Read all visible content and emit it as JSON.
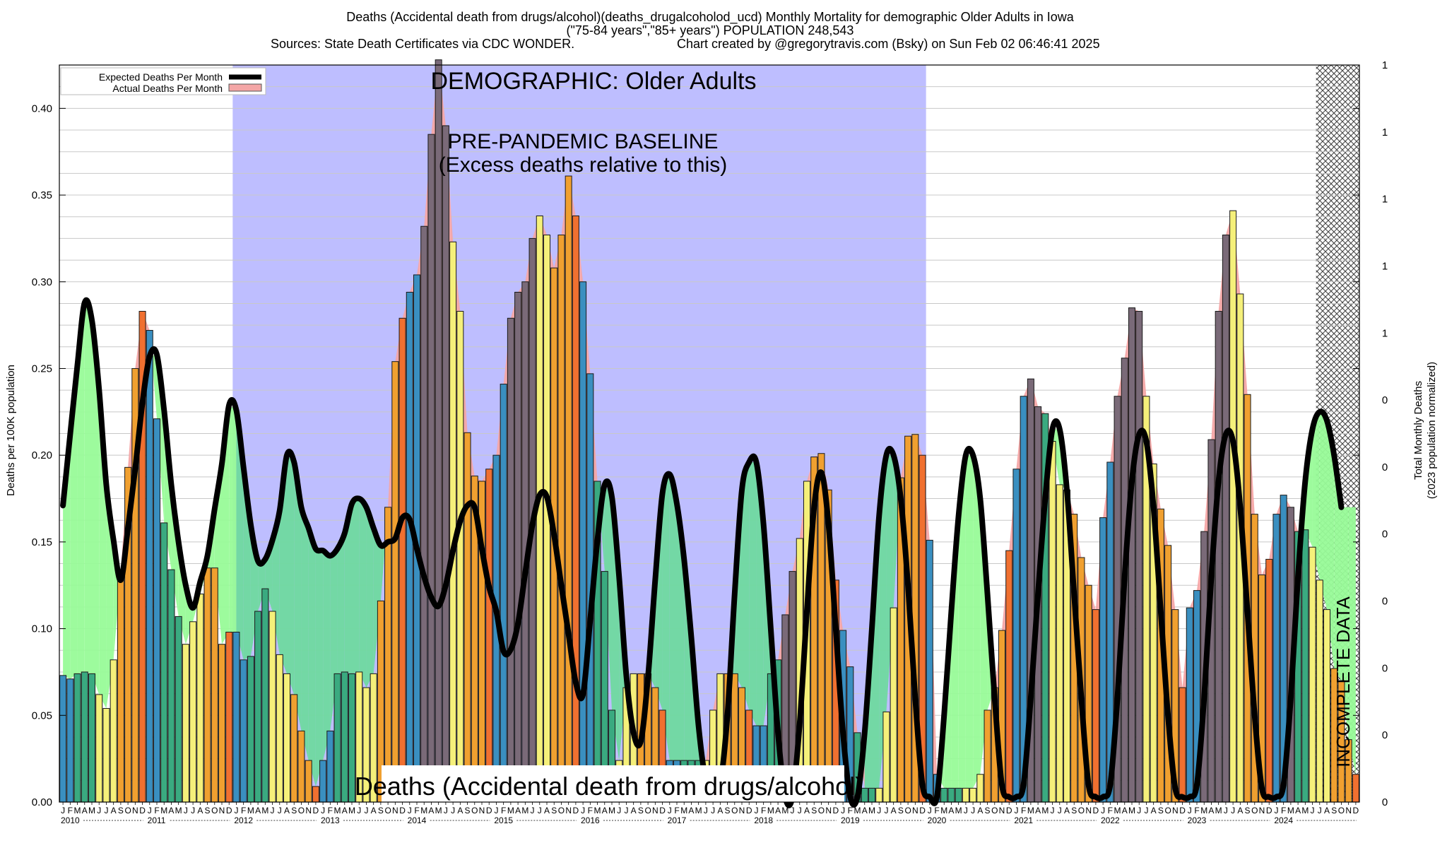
{
  "header": {
    "line1": "Deaths (Accidental death from drugs/alcohol)(deaths_drugalcoholod_ucd) Monthly Mortality for demographic Older Adults in Iowa",
    "line2": "(\"75-84 years\",\"85+ years\") POPULATION 248,543",
    "line3a": "Sources: State Death Certificates via CDC WONDER.",
    "line3b": "Chart created by @gregorytravis.com (Bsky) on Sun Feb 02 06:46:41 2025"
  },
  "annotations": {
    "demographic": "DEMOGRAPHIC: Older Adults",
    "baseline_line1": "PRE-PANDEMIC BASELINE",
    "baseline_line2": "(Excess deaths relative to this)",
    "bottom_label": "Deaths (Accidental death from drugs/alcohol)",
    "incomplete": "INCOMPLETE DATA"
  },
  "legend": {
    "expected": "Expected Deaths Per Month",
    "actual": "Actual Deaths Per Month"
  },
  "colors": {
    "baseline_region": "#bebeff",
    "excess_fill": "#98fb98",
    "deficit_fill": "#6fd9a0",
    "actual_fill": "#f4a6a6",
    "expected_line": "#000000",
    "bar_winter": "#3a8fc0",
    "bar_spring": "#3aaa80",
    "bar_summer": "#f5f07a",
    "bar_fall": "#f0a030",
    "bar_dec": "#f07030",
    "bar_peak": "#7a6a78"
  },
  "chart_data": {
    "type": "bar",
    "title": "Deaths (Accidental death from drugs/alcohol)(deaths_drugalcoholod_ucd) Monthly Mortality for demographic Older Adults in Iowa",
    "ylabel": "Deaths per 100K population",
    "y2label_line1": "Total Monthly Deaths",
    "y2label_line2": "(2023 population normalized)",
    "ylim": [
      0,
      0.425
    ],
    "yticks": [
      "0.00",
      "0.05",
      "0.10",
      "0.15",
      "0.20",
      "0.25",
      "0.30",
      "0.35",
      "0.40"
    ],
    "y2ticks": [
      "0",
      "0",
      "0",
      "0",
      "0",
      "0",
      "0",
      "1",
      "1",
      "1",
      "1",
      "1"
    ],
    "years": [
      "2010",
      "2011",
      "2012",
      "2013",
      "2014",
      "2015",
      "2016",
      "2017",
      "2018",
      "2019",
      "2020",
      "2021",
      "2022",
      "2023",
      "2024"
    ],
    "month_letters": [
      "J",
      "F",
      "M",
      "A",
      "M",
      "J",
      "J",
      "A",
      "S",
      "O",
      "N",
      "D"
    ],
    "baseline_period": [
      "2012-01",
      "2019-12"
    ],
    "incomplete_from": "2024-07",
    "grid": true,
    "legend_position": "top-left",
    "series": [
      {
        "name": "Actual Deaths Per Month",
        "values": [
          0.073,
          0.071,
          0.074,
          0.075,
          0.074,
          0.062,
          0.054,
          0.082,
          0.133,
          0.193,
          0.25,
          0.283,
          0.272,
          0.221,
          0.161,
          0.134,
          0.107,
          0.091,
          0.104,
          0.12,
          0.135,
          0.135,
          0.091,
          0.098,
          0.098,
          0.082,
          0.084,
          0.11,
          0.123,
          0.11,
          0.085,
          0.074,
          0.062,
          0.041,
          0.024,
          0.009,
          0.024,
          0.041,
          0.074,
          0.075,
          0.074,
          0.075,
          0.066,
          0.074,
          0.116,
          0.17,
          0.254,
          0.279,
          0.294,
          0.304,
          0.332,
          0.385,
          0.428,
          0.39,
          0.323,
          0.283,
          0.213,
          0.188,
          0.185,
          0.192,
          0.2,
          0.241,
          0.279,
          0.294,
          0.3,
          0.325,
          0.338,
          0.327,
          0.308,
          0.327,
          0.361,
          0.338,
          0.3,
          0.247,
          0.185,
          0.133,
          0.053,
          0.024,
          0.066,
          0.074,
          0.074,
          0.074,
          0.066,
          0.053,
          0.024,
          0.024,
          0.024,
          0.024,
          0.024,
          0.024,
          0.053,
          0.074,
          0.074,
          0.074,
          0.066,
          0.053,
          0.044,
          0.044,
          0.074,
          0.082,
          0.108,
          0.133,
          0.152,
          0.185,
          0.199,
          0.201,
          0.18,
          0.128,
          0.099,
          0.078,
          0.04,
          0.008,
          0.008,
          0.008,
          0.052,
          0.112,
          0.187,
          0.211,
          0.212,
          0.2,
          0.151,
          0.016,
          0.008,
          0.008,
          0.008,
          0.008,
          0.008,
          0.016,
          0.053,
          0.066,
          0.099,
          0.145,
          0.192,
          0.234,
          0.244,
          0.228,
          0.224,
          0.208,
          0.183,
          0.18,
          0.166,
          0.141,
          0.125,
          0.111,
          0.164,
          0.196,
          0.234,
          0.256,
          0.285,
          0.283,
          0.234,
          0.195,
          0.169,
          0.148,
          0.111,
          0.066,
          0.112,
          0.122,
          0.156,
          0.209,
          0.283,
          0.327,
          0.341,
          0.293,
          0.235,
          0.166,
          0.131,
          0.14,
          0.166,
          0.177,
          0.17,
          0.156,
          0.157,
          0.147,
          0.128,
          0.111,
          0.077,
          0.07,
          0.036,
          0.016
        ]
      },
      {
        "name": "Expected Deaths Per Month",
        "values": [
          0.171,
          0.212,
          0.252,
          0.288,
          0.278,
          0.238,
          0.183,
          0.151,
          0.128,
          0.158,
          0.192,
          0.23,
          0.257,
          0.258,
          0.226,
          0.183,
          0.15,
          0.125,
          0.112,
          0.127,
          0.142,
          0.169,
          0.195,
          0.229,
          0.226,
          0.193,
          0.16,
          0.139,
          0.14,
          0.151,
          0.168,
          0.2,
          0.196,
          0.17,
          0.158,
          0.146,
          0.145,
          0.142,
          0.146,
          0.155,
          0.172,
          0.175,
          0.17,
          0.158,
          0.148,
          0.15,
          0.152,
          0.164,
          0.163,
          0.146,
          0.13,
          0.118,
          0.113,
          0.125,
          0.145,
          0.162,
          0.171,
          0.17,
          0.146,
          0.124,
          0.11,
          0.087,
          0.088,
          0.103,
          0.132,
          0.16,
          0.177,
          0.176,
          0.154,
          0.125,
          0.097,
          0.069,
          0.062,
          0.105,
          0.151,
          0.183,
          0.176,
          0.13,
          0.073,
          0.04,
          0.035,
          0.072,
          0.128,
          0.178,
          0.189,
          0.172,
          0.14,
          0.095,
          0.044,
          0.012,
          0.003,
          0.01,
          0.05,
          0.12,
          0.18,
          0.196,
          0.196,
          0.16,
          0.1,
          0.04,
          0.003,
          0.003,
          0.045,
          0.11,
          0.17,
          0.19,
          0.16,
          0.1,
          0.04,
          0.003,
          0.003,
          0.04,
          0.1,
          0.165,
          0.2,
          0.2,
          0.175,
          0.125,
          0.06,
          0.01,
          0.003,
          0.003,
          0.05,
          0.11,
          0.165,
          0.2,
          0.2,
          0.175,
          0.12,
          0.06,
          0.01,
          0.003,
          0.003,
          0.01,
          0.06,
          0.12,
          0.175,
          0.215,
          0.215,
          0.18,
          0.12,
          0.06,
          0.01,
          0.003,
          0.003,
          0.01,
          0.06,
          0.13,
          0.185,
          0.212,
          0.208,
          0.17,
          0.11,
          0.05,
          0.008,
          0.003,
          0.003,
          0.01,
          0.06,
          0.13,
          0.185,
          0.212,
          0.208,
          0.17,
          0.11,
          0.05,
          0.008,
          0.003,
          0.003,
          0.01,
          0.06,
          0.13,
          0.185,
          0.215,
          0.225,
          0.22,
          0.2,
          0.17
        ]
      }
    ]
  }
}
